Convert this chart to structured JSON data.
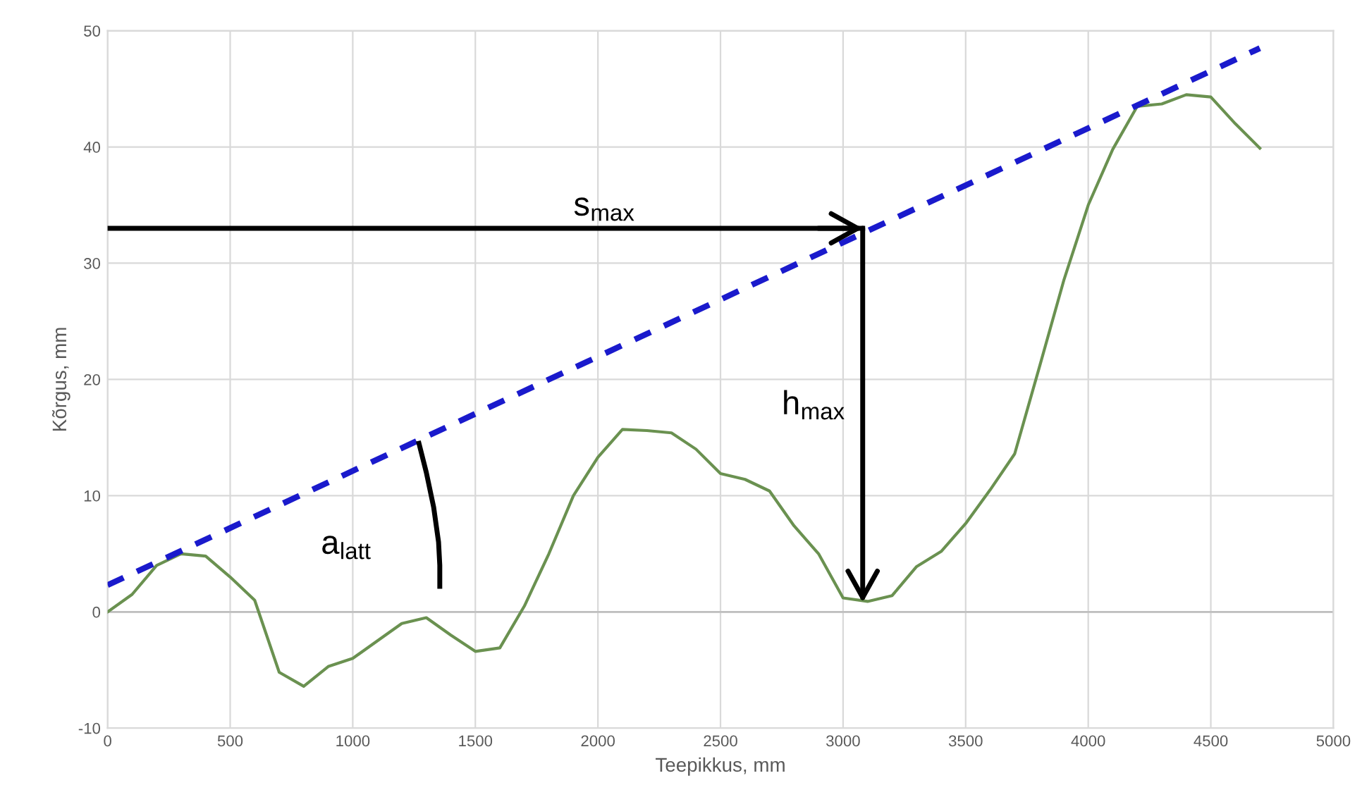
{
  "chart_data": {
    "type": "line",
    "xlabel": "Teepikkus, mm",
    "ylabel": "Kõrgus, mm",
    "xlim": [
      0,
      5000
    ],
    "xticks": [
      0,
      500,
      1000,
      1500,
      2000,
      2500,
      3000,
      3500,
      4000,
      4500,
      5000
    ],
    "ylim": [
      -10,
      50
    ],
    "yticks": [
      -10,
      0,
      10,
      20,
      30,
      40,
      50
    ],
    "grid": true,
    "series": [
      {
        "color": "#6a9150",
        "line_style": "solid",
        "x": [
          0,
          100,
          200,
          300,
          400,
          500,
          600,
          700,
          800,
          900,
          1000,
          1100,
          1200,
          1300,
          1400,
          1500,
          1600,
          1700,
          1800,
          1900,
          2000,
          2100,
          2200,
          2300,
          2400,
          2500,
          2600,
          2700,
          2800,
          2900,
          3000,
          3100,
          3200,
          3300,
          3400,
          3500,
          3600,
          3700,
          3800,
          3900,
          4000,
          4100,
          4200,
          4300,
          4400,
          4500,
          4600,
          4700
        ],
        "values": [
          0,
          1.5,
          4,
          5,
          4.8,
          3,
          1,
          -5.2,
          -6.4,
          -4.7,
          -4,
          -2.5,
          -1,
          -0.5,
          -2,
          -3.4,
          -3.1,
          0.5,
          5,
          10,
          13.3,
          15.7,
          15.6,
          15.4,
          14,
          11.9,
          11.4,
          10.4,
          7.4,
          5,
          1.2,
          0.9,
          1.4,
          3.9,
          5.2,
          7.6,
          10.5,
          13.6,
          21,
          28.5,
          35,
          39.8,
          43.5,
          43.7,
          44.5,
          44.3,
          42,
          39.9
        ]
      },
      {
        "color": "#1a1acc",
        "line_style": "dashed",
        "x": [
          0,
          4700
        ],
        "values": [
          2.3,
          48.5
        ]
      },
      {
        "color": "#000000",
        "line_style": "solid",
        "x": [
          0,
          3080
        ],
        "values": [
          33,
          33
        ]
      }
    ],
    "annotations": [
      "s$_{max}$",
      "h$_{max}$",
      "a$_{latt}$"
    ],
    "marker": "none"
  }
}
